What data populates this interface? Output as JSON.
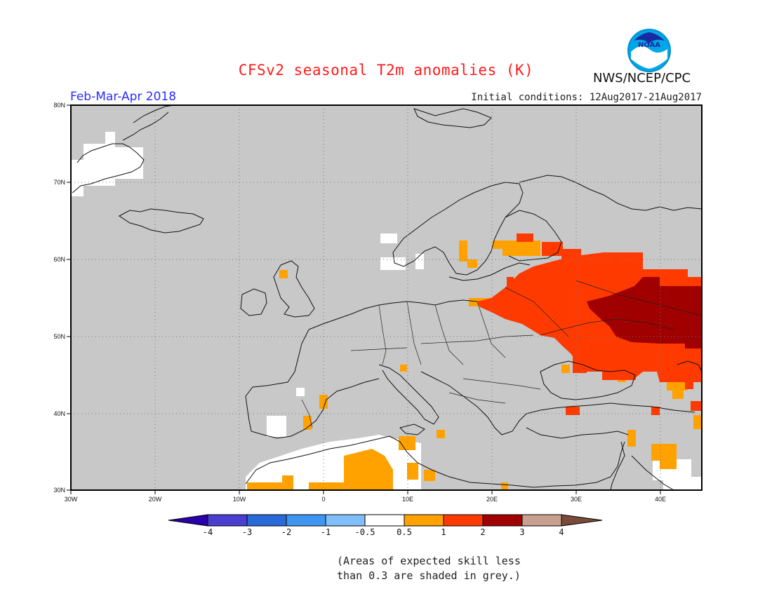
{
  "header": {
    "title": "CFSv2 seasonal T2m anomalies (K)",
    "season": "Feb-Mar-Apr 2018",
    "initial_conditions": "Initial conditions: 12Aug2017-21Aug2017",
    "agency": "NWS/NCEP/CPC",
    "logo_text": "NOAA"
  },
  "map": {
    "lon_range": [
      -30,
      45
    ],
    "lat_range": [
      30,
      80
    ],
    "lat_ticks": [
      "80N",
      "70N",
      "60N",
      "50N",
      "40N",
      "30N"
    ],
    "lon_ticks": [
      "30W",
      "20W",
      "10W",
      "0",
      "10E",
      "20E",
      "30E",
      "40E"
    ],
    "background_color": "#c8c8c8",
    "grid": "dotted"
  },
  "colorbar": {
    "labels": [
      "-4",
      "-3",
      "-2",
      "-1",
      "-0.5",
      "0.5",
      "1",
      "2",
      "3",
      "4"
    ],
    "colors": [
      "#2a00a8",
      "#4a3fd0",
      "#2a6ad8",
      "#3f96f0",
      "#7fbef8",
      "#ffffff",
      "#ffa200",
      "#ff3a00",
      "#a00000",
      "#c8a090",
      "#7a4a3a"
    ]
  },
  "footnote": {
    "line1": "(Areas of expected skill less",
    "line2": "than 0.3 are shaded in grey.)"
  }
}
